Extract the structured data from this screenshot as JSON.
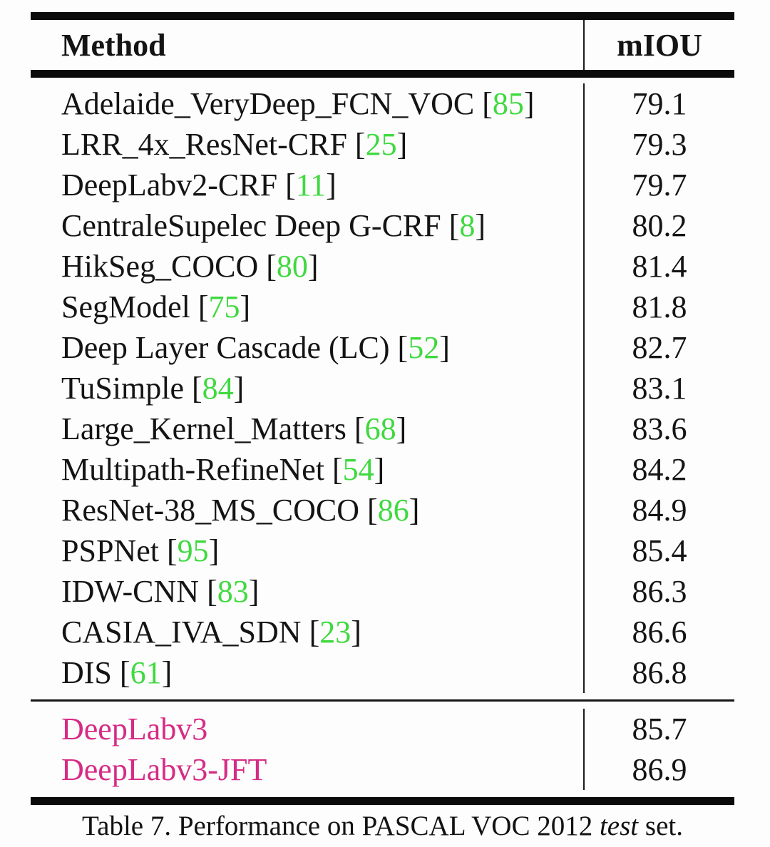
{
  "colors": {
    "citation_green": "#3fd93f",
    "highlight_pink": "#d62b85",
    "rule_black": "#0b0b0b"
  },
  "table": {
    "header": {
      "method": "Method",
      "metric": "mIOU"
    },
    "cite_open": "[",
    "cite_close": "]",
    "rows": [
      {
        "method": "Adelaide_VeryDeep_FCN_VOC",
        "ref": "85",
        "miou": "79.1"
      },
      {
        "method": "LRR_4x_ResNet-CRF",
        "ref": "25",
        "miou": "79.3"
      },
      {
        "method": "DeepLabv2-CRF",
        "ref": "11",
        "miou": "79.7"
      },
      {
        "method": "CentraleSupelec Deep G-CRF",
        "ref": "8",
        "miou": "80.2"
      },
      {
        "method": "HikSeg_COCO",
        "ref": "80",
        "miou": "81.4"
      },
      {
        "method": "SegModel",
        "ref": "75",
        "miou": "81.8"
      },
      {
        "method": "Deep Layer Cascade (LC)",
        "ref": "52",
        "miou": "82.7"
      },
      {
        "method": "TuSimple",
        "ref": "84",
        "miou": "83.1"
      },
      {
        "method": "Large_Kernel_Matters",
        "ref": "68",
        "miou": "83.6"
      },
      {
        "method": "Multipath-RefineNet",
        "ref": "54",
        "miou": "84.2"
      },
      {
        "method": "ResNet-38_MS_COCO",
        "ref": "86",
        "miou": "84.9"
      },
      {
        "method": "PSPNet",
        "ref": "95",
        "miou": "85.4"
      },
      {
        "method": "IDW-CNN",
        "ref": "83",
        "miou": "86.3"
      },
      {
        "method": "CASIA_IVA_SDN",
        "ref": "23",
        "miou": "86.6"
      },
      {
        "method": "DIS",
        "ref": "61",
        "miou": "86.8"
      }
    ],
    "highlight_rows": [
      {
        "method": "DeepLabv3",
        "ref": null,
        "miou": "85.7"
      },
      {
        "method": "DeepLabv3-JFT",
        "ref": null,
        "miou": "86.9"
      }
    ]
  },
  "caption": {
    "prefix": "Table 7. Performance on PASCAL VOC 2012 ",
    "italic": "test",
    "suffix": " set."
  }
}
